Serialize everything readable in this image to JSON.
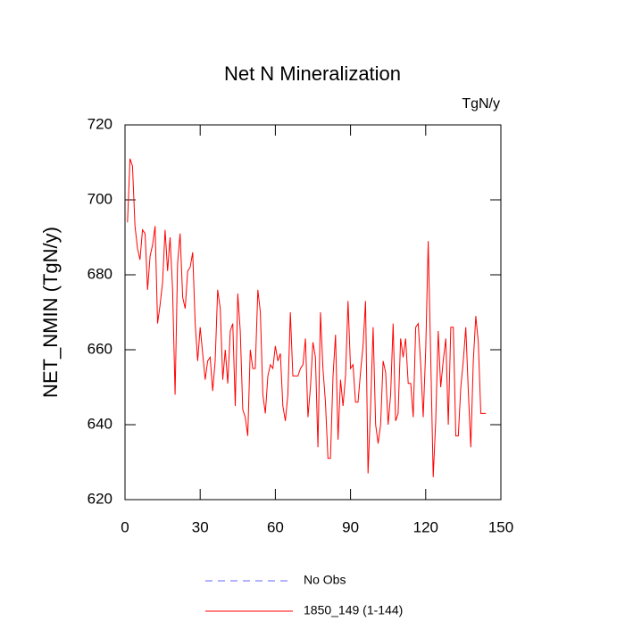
{
  "chart_data": {
    "type": "line",
    "title": "Net N Mineralization",
    "units_label": "TgN/y",
    "y_label": "NET_NMIN  (TgN/y)",
    "x": [
      1,
      2,
      3,
      4,
      5,
      6,
      7,
      8,
      9,
      10,
      11,
      12,
      13,
      14,
      15,
      16,
      17,
      18,
      19,
      20,
      21,
      22,
      23,
      24,
      25,
      26,
      27,
      28,
      29,
      30,
      31,
      32,
      33,
      34,
      35,
      36,
      37,
      38,
      39,
      40,
      41,
      42,
      43,
      44,
      45,
      46,
      47,
      48,
      49,
      50,
      51,
      52,
      53,
      54,
      55,
      56,
      57,
      58,
      59,
      60,
      61,
      62,
      63,
      64,
      65,
      66,
      67,
      68,
      69,
      70,
      71,
      72,
      73,
      74,
      75,
      76,
      77,
      78,
      79,
      80,
      81,
      82,
      83,
      84,
      85,
      86,
      87,
      88,
      89,
      90,
      91,
      92,
      93,
      94,
      95,
      96,
      97,
      98,
      99,
      100,
      101,
      102,
      103,
      104,
      105,
      106,
      107,
      108,
      109,
      110,
      111,
      112,
      113,
      114,
      115,
      116,
      117,
      118,
      119,
      120,
      121,
      122,
      123,
      124,
      125,
      126,
      127,
      128,
      129,
      130,
      131,
      132,
      133,
      134,
      135,
      136,
      137,
      138,
      139,
      140,
      141,
      142,
      143,
      144
    ],
    "series": [
      {
        "name": "No Obs",
        "color": "#6666ff",
        "dashed": true,
        "values": [
          null,
          null,
          null,
          null,
          null,
          null,
          null,
          null,
          null,
          null,
          null,
          null,
          null,
          null,
          null,
          null,
          null,
          null,
          null,
          null,
          null,
          null,
          null,
          null,
          null,
          null,
          null,
          null,
          null,
          null,
          null,
          null,
          null,
          null,
          null,
          null,
          null,
          null,
          null,
          null,
          null,
          null,
          null,
          null,
          null,
          null,
          null,
          null,
          null,
          null,
          null,
          null,
          null,
          null,
          null,
          null,
          null,
          null,
          null,
          null,
          null,
          null,
          null,
          null,
          null,
          null,
          null,
          null,
          null,
          null,
          null,
          null,
          null,
          null,
          null,
          null,
          null,
          null,
          null,
          null,
          null,
          null,
          null,
          null,
          null,
          null,
          null,
          null,
          null,
          null,
          null,
          null,
          null,
          null,
          null,
          null,
          null,
          null,
          null,
          null,
          null,
          null,
          null,
          null,
          null,
          null,
          null,
          null,
          null,
          null,
          null,
          null,
          null,
          null,
          null,
          null,
          null,
          null,
          null,
          null,
          null,
          null,
          null,
          null,
          null,
          null,
          null,
          null,
          null,
          null,
          null,
          null,
          null,
          null,
          null,
          null,
          null,
          null,
          null,
          null,
          null,
          null,
          null,
          null
        ]
      },
      {
        "name": "1850_149 (1-144)",
        "color": "#ff0000",
        "dashed": false,
        "values": [
          694,
          711,
          709,
          693,
          687,
          684,
          692,
          691,
          676,
          685,
          688,
          693,
          667,
          672,
          678,
          692,
          681,
          690,
          676,
          648,
          683,
          691,
          674,
          671,
          681,
          682,
          686,
          667,
          657,
          666,
          659,
          652,
          657,
          658,
          649,
          657,
          676,
          671,
          652,
          660,
          651,
          665,
          667,
          645,
          675,
          665,
          644,
          642,
          637,
          660,
          655,
          655,
          676,
          670,
          648,
          643,
          653,
          656,
          655,
          661,
          657,
          659,
          645,
          641,
          648,
          670,
          653,
          653,
          653,
          655,
          656,
          663,
          642,
          650,
          662,
          658,
          634,
          670,
          655,
          646,
          631,
          631,
          653,
          664,
          636,
          652,
          645,
          653,
          673,
          655,
          656,
          646,
          646,
          654,
          661,
          673,
          627,
          645,
          666,
          640,
          635,
          640,
          657,
          654,
          640,
          648,
          667,
          641,
          643,
          663,
          658,
          663,
          651,
          651,
          642,
          666,
          667,
          656,
          642,
          660,
          689,
          658,
          626,
          641,
          665,
          650,
          657,
          663,
          640,
          666,
          666,
          637,
          637,
          650,
          657,
          666,
          649,
          634,
          657,
          669,
          662,
          643,
          643,
          643
        ]
      }
    ],
    "xlim": [
      0,
      150
    ],
    "xticks": [
      0,
      30,
      60,
      90,
      120,
      150
    ],
    "ylim": [
      620,
      720
    ],
    "yticks": [
      620,
      640,
      660,
      680,
      700,
      720
    ]
  }
}
